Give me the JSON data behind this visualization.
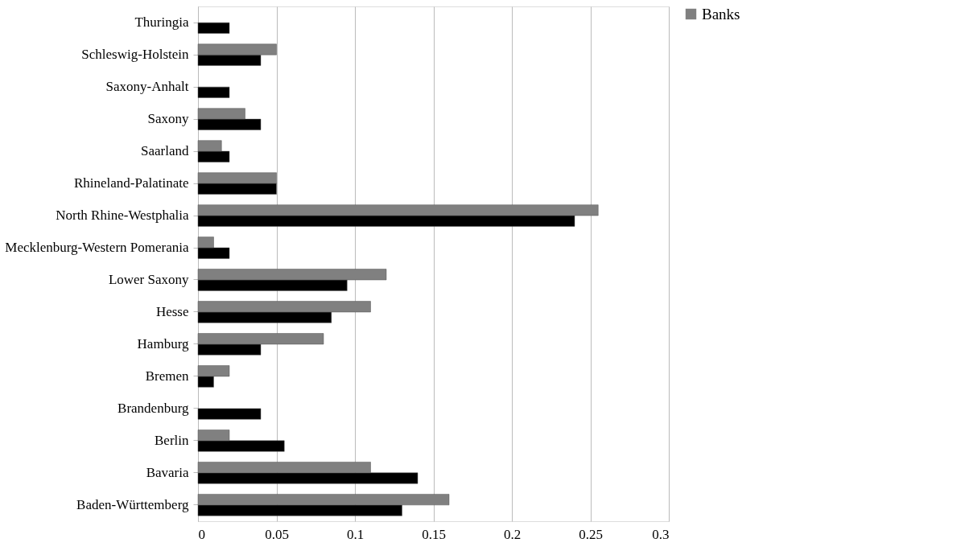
{
  "chart_data": {
    "type": "bar",
    "orientation": "horizontal",
    "categories": [
      "Thuringia",
      "Schleswig-Holstein",
      "Saxony-Anhalt",
      "Saxony",
      "Saarland",
      "Rhineland-Palatinate",
      "North Rhine-Westphalia",
      "Mecklenburg-Western Pomerania",
      "Lower Saxony",
      "Hesse",
      "Hamburg",
      "Bremen",
      "Brandenburg",
      "Berlin",
      "Bavaria",
      "Baden-Württemberg"
    ],
    "series": [
      {
        "color": "#000000",
        "values": [
          0.02,
          0.04,
          0.02,
          0.04,
          0.02,
          0.05,
          0.24,
          0.02,
          0.095,
          0.085,
          0.04,
          0.01,
          0.04,
          0.055,
          0.14,
          0.13
        ]
      },
      {
        "name": "Banks",
        "color": "#808080",
        "values": [
          null,
          0.05,
          null,
          0.03,
          0.015,
          0.05,
          0.255,
          0.01,
          0.12,
          0.11,
          0.08,
          0.02,
          null,
          0.02,
          0.11,
          0.16
        ]
      }
    ],
    "xlim": [
      0,
      0.3
    ],
    "xticks": [
      0,
      0.05,
      0.1,
      0.15,
      0.2,
      0.25,
      0.3
    ],
    "grid": "x",
    "legend": "right"
  }
}
